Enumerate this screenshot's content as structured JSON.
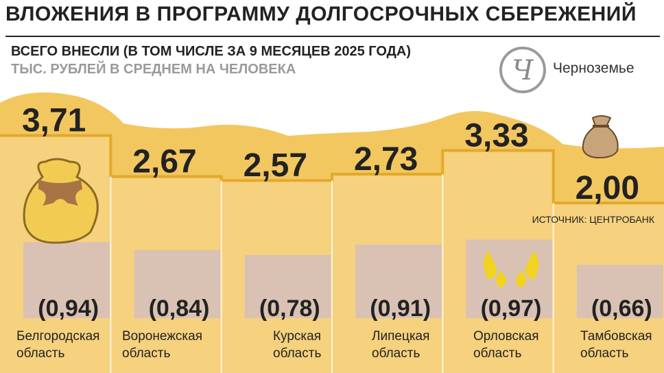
{
  "header": {
    "title": "ВЛОЖЕНИЯ В ПРОГРАММУ ДОЛГОСРОЧНЫХ СБЕРЕЖЕНИЙ",
    "subtitle": "ВСЕГО ВНЕСЛИ (В ТОМ ЧИСЛЕ ЗА 9 МЕСЯЦЕВ 2025 ГОДА)",
    "unit": "ТЫС. РУБЛЕЙ В СРЕДНЕМ НА ЧЕЛОВЕКА"
  },
  "brand": {
    "logo_letter": "Ч",
    "name": "Черноземье"
  },
  "source": "ИСТОЧНИК: ЦЕНТРОБАНК",
  "colors": {
    "sand": "#f6d17e",
    "sand_back": "#f2c760",
    "sub_bar": "#d9c2b4",
    "line": "#e3a92a",
    "text": "#222222"
  },
  "chart_data": {
    "type": "bar",
    "categories": [
      "Белгородская область",
      "Воронежская область",
      "Курская область",
      "Липецкая область",
      "Орловская область",
      "Тамбовская область"
    ],
    "region_lines": [
      [
        "Белгородская",
        "область"
      ],
      [
        "Воронежская",
        "область"
      ],
      [
        "Курская",
        "область"
      ],
      [
        "Липецкая",
        "область"
      ],
      [
        "Орловская",
        "область"
      ],
      [
        "Тамбовская",
        "область"
      ]
    ],
    "series": [
      {
        "values": [
          3.71,
          2.67,
          2.57,
          2.73,
          3.33,
          2.0
        ],
        "labels": [
          "3,71",
          "2,67",
          "2,57",
          "2,73",
          "3,33",
          "2,00"
        ]
      },
      {
        "values": [
          0.94,
          0.84,
          0.78,
          0.91,
          0.97,
          0.66
        ],
        "labels": [
          "(0,94)",
          "(0,84)",
          "(0,78)",
          "(0,91)",
          "(0,97)",
          "(0,66)"
        ]
      }
    ],
    "icons": [
      "money-bag-icon",
      "wheat-icon",
      "sack-icon"
    ]
  }
}
